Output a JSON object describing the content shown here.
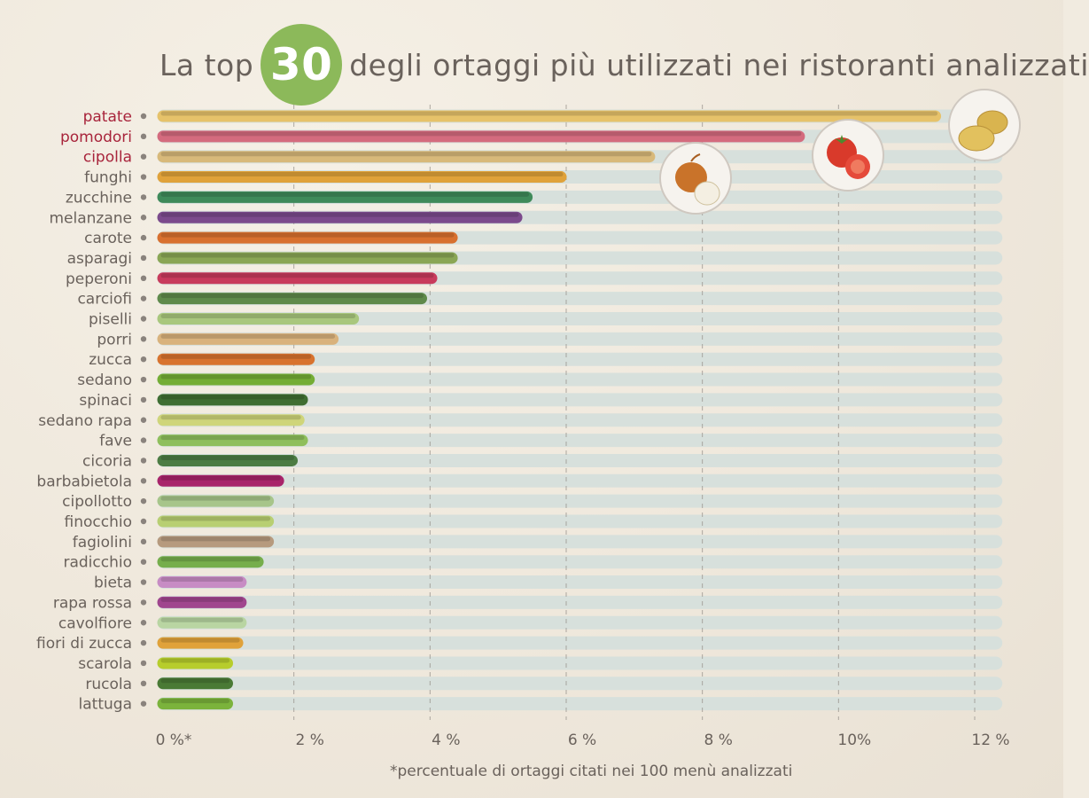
{
  "header": {
    "title_before": "La top",
    "title_number": "30",
    "title_after": "degli ortaggi più utilizzati nei ristoranti analizzati"
  },
  "footnote": "*percentuale di ortaggi citati nei 100 menù analizzati",
  "chart_data": {
    "type": "bar",
    "orientation": "horizontal",
    "title": "La top 30 degli ortaggi più utilizzati nei ristoranti analizzati",
    "xlim": [
      0,
      12.4
    ],
    "x_ticks": [
      {
        "value": 0,
        "label": "0 %*"
      },
      {
        "value": 2,
        "label": "2 %"
      },
      {
        "value": 4,
        "label": "4 %"
      },
      {
        "value": 6,
        "label": "6 %"
      },
      {
        "value": 8,
        "label": "8 %"
      },
      {
        "value": 10,
        "label": "10%"
      },
      {
        "value": 12,
        "label": "12 %"
      }
    ],
    "grid": "vertical dashed",
    "categories": [
      "patate",
      "pomodori",
      "cipolla",
      "funghi",
      "zucchine",
      "melanzane",
      "carote",
      "asparagi",
      "peperoni",
      "carciofi",
      "piselli",
      "porri",
      "zucca",
      "sedano",
      "spinaci",
      "sedano rapa",
      "fave",
      "cicoria",
      "barbabietola",
      "cipollotto",
      "finocchio",
      "fagiolini",
      "radicchio",
      "bieta",
      "rapa rossa",
      "cavolfiore",
      "fiori di zucca",
      "scarola",
      "rucola",
      "lattuga"
    ],
    "values": [
      11.5,
      9.5,
      7.3,
      6.0,
      5.5,
      5.35,
      4.4,
      4.4,
      4.1,
      3.95,
      2.95,
      2.65,
      2.3,
      2.3,
      2.2,
      2.15,
      2.2,
      2.05,
      1.85,
      1.7,
      1.7,
      1.7,
      1.55,
      1.3,
      1.3,
      1.3,
      1.25,
      1.1,
      1.1,
      1.1
    ],
    "colors": [
      "#e6c26a",
      "#d46b7e",
      "#d8b97a",
      "#e0a23a",
      "#3f8a5a",
      "#7b4a8c",
      "#d8702f",
      "#8aa655",
      "#c83b5c",
      "#5f8a4b",
      "#a9c77d",
      "#d9b27c",
      "#d8732e",
      "#74ad35",
      "#3f6e32",
      "#cfd57a",
      "#8fbf5c",
      "#4c7c43",
      "#a8246a",
      "#a7c58a",
      "#b8cf72",
      "#b69a7e",
      "#76ae4c",
      "#c78cc4",
      "#a0468e",
      "#b9d5a2",
      "#e0a23a",
      "#b7cd2c",
      "#4a7a35",
      "#7bb33c"
    ],
    "highlight_categories": [
      "patate",
      "pomodori",
      "cipolla"
    ],
    "label_color": "#6a625c",
    "highlight_label_color": "#a8243b",
    "track_color": "#d7e0dc"
  }
}
